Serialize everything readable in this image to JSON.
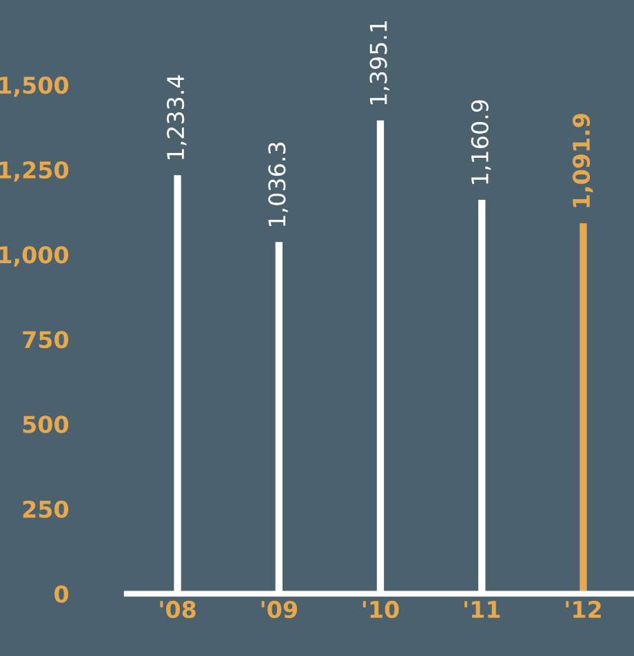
{
  "chart_data": {
    "type": "bar",
    "categories": [
      "'08",
      "'09",
      "'10",
      "'11",
      "'12"
    ],
    "values": [
      1233.4,
      1036.3,
      1395.1,
      1160.9,
      1091.9
    ],
    "colors": [
      "#ffffff",
      "#ffffff",
      "#ffffff",
      "#ffffff",
      "#e8a94e"
    ],
    "value_labels": [
      "1,233.4",
      "1,036.3",
      "1,395.1",
      "1,160.9",
      "1,091.9"
    ],
    "ylim": [
      0,
      1750
    ],
    "yticks": [
      {
        "value": 0,
        "label": "0"
      },
      {
        "value": 250,
        "label": "250"
      },
      {
        "value": 500,
        "label": "500"
      },
      {
        "value": 750,
        "label": "750"
      },
      {
        "value": 1000,
        "label": "1,000"
      },
      {
        "value": 1250,
        "label": "1,250"
      },
      {
        "value": 1500,
        "label": "1,500"
      }
    ],
    "grid": false,
    "legend": false
  }
}
